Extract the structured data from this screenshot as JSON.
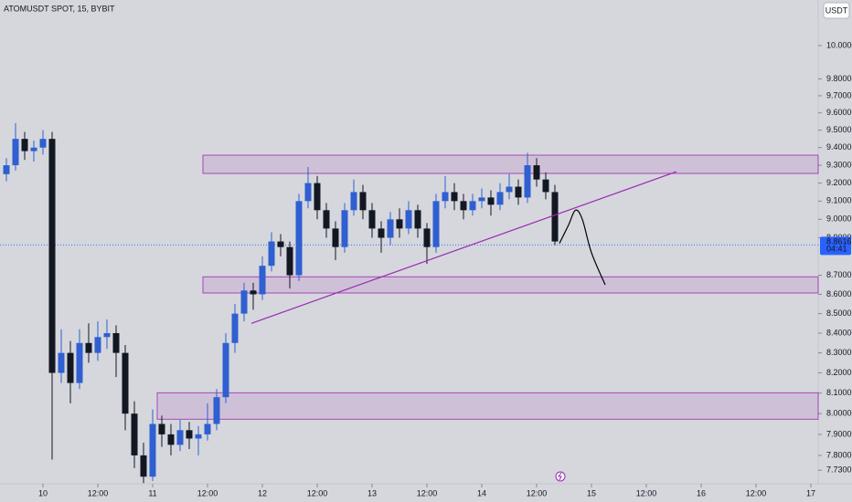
{
  "chart_data": {
    "type": "candlestick",
    "title": "ATOMUSDT SPOT, 15, BYBIT",
    "currency_button": "USDT",
    "log_scale": true,
    "up_color": "#2f5fd0",
    "down_color": "#131722",
    "x": [
      -8,
      -6,
      -4,
      -2,
      0,
      2,
      4,
      6,
      8,
      10,
      12,
      14,
      16,
      18,
      20,
      22,
      24,
      26,
      28,
      30,
      32,
      34,
      36,
      38,
      40,
      42,
      44,
      46,
      48,
      50,
      52,
      54,
      56,
      58,
      60,
      62,
      64,
      66,
      68,
      70,
      72,
      74,
      76,
      78,
      80,
      82,
      84,
      86,
      88,
      90,
      92,
      94,
      96,
      98,
      100,
      102,
      104,
      106,
      108,
      110,
      112
    ],
    "ohlc": [
      [
        9.25,
        9.34,
        9.21,
        9.3
      ],
      [
        9.3,
        9.54,
        9.27,
        9.45
      ],
      [
        9.45,
        9.49,
        9.33,
        9.38
      ],
      [
        9.38,
        9.44,
        9.32,
        9.4
      ],
      [
        9.4,
        9.5,
        9.36,
        9.45
      ],
      [
        9.45,
        9.49,
        7.78,
        8.2
      ],
      [
        8.2,
        8.42,
        8.15,
        8.3
      ],
      [
        8.3,
        8.36,
        8.05,
        8.15
      ],
      [
        8.15,
        8.42,
        8.12,
        8.35
      ],
      [
        8.35,
        8.45,
        8.25,
        8.3
      ],
      [
        8.3,
        8.46,
        8.26,
        8.38
      ],
      [
        8.38,
        8.47,
        8.32,
        8.4
      ],
      [
        8.4,
        8.44,
        8.18,
        8.3
      ],
      [
        8.3,
        8.34,
        7.92,
        8.0
      ],
      [
        8.0,
        8.06,
        7.74,
        7.8
      ],
      [
        7.8,
        7.86,
        7.67,
        7.7
      ],
      [
        7.7,
        8.02,
        7.68,
        7.95
      ],
      [
        7.95,
        7.99,
        7.84,
        7.9
      ],
      [
        7.9,
        7.95,
        7.8,
        7.85
      ],
      [
        7.85,
        7.97,
        7.82,
        7.92
      ],
      [
        7.92,
        7.96,
        7.83,
        7.88
      ],
      [
        7.88,
        7.94,
        7.8,
        7.9
      ],
      [
        7.9,
        8.05,
        7.87,
        7.95
      ],
      [
        7.95,
        8.12,
        7.92,
        8.08
      ],
      [
        8.08,
        8.4,
        8.05,
        8.35
      ],
      [
        8.35,
        8.55,
        8.3,
        8.5
      ],
      [
        8.5,
        8.66,
        8.46,
        8.62
      ],
      [
        8.62,
        8.66,
        8.52,
        8.6
      ],
      [
        8.6,
        8.8,
        8.57,
        8.75
      ],
      [
        8.75,
        8.93,
        8.72,
        8.88
      ],
      [
        8.88,
        8.92,
        8.8,
        8.85
      ],
      [
        8.85,
        8.88,
        8.63,
        8.7
      ],
      [
        8.7,
        9.14,
        8.67,
        9.1
      ],
      [
        9.1,
        9.29,
        9.06,
        9.2
      ],
      [
        9.2,
        9.24,
        9.0,
        9.05
      ],
      [
        9.05,
        9.09,
        8.9,
        8.95
      ],
      [
        8.95,
        8.99,
        8.78,
        8.85
      ],
      [
        8.85,
        9.09,
        8.82,
        9.05
      ],
      [
        9.05,
        9.22,
        9.02,
        9.15
      ],
      [
        9.15,
        9.19,
        9.0,
        9.05
      ],
      [
        9.05,
        9.09,
        8.9,
        8.95
      ],
      [
        8.95,
        8.99,
        8.82,
        8.9
      ],
      [
        8.9,
        9.04,
        8.86,
        9.0
      ],
      [
        9.0,
        9.06,
        8.9,
        8.95
      ],
      [
        8.95,
        9.1,
        8.92,
        9.05
      ],
      [
        9.05,
        9.08,
        8.9,
        8.95
      ],
      [
        8.95,
        8.98,
        8.76,
        8.85
      ],
      [
        8.85,
        9.14,
        8.82,
        9.1
      ],
      [
        9.1,
        9.24,
        9.06,
        9.15
      ],
      [
        9.15,
        9.2,
        9.05,
        9.1
      ],
      [
        9.1,
        9.14,
        9.0,
        9.05
      ],
      [
        9.05,
        9.14,
        9.02,
        9.1
      ],
      [
        9.1,
        9.17,
        9.06,
        9.12
      ],
      [
        9.12,
        9.16,
        9.02,
        9.08
      ],
      [
        9.08,
        9.2,
        9.05,
        9.15
      ],
      [
        9.15,
        9.25,
        9.11,
        9.18
      ],
      [
        9.18,
        9.22,
        9.08,
        9.12
      ],
      [
        9.12,
        9.37,
        9.09,
        9.3
      ],
      [
        9.3,
        9.34,
        9.18,
        9.22
      ],
      [
        9.22,
        9.26,
        9.11,
        9.15
      ],
      [
        9.15,
        9.19,
        8.86,
        8.88
      ]
    ],
    "xlim": [
      -9.4,
      169.6
    ],
    "xticks": [
      {
        "value": 0,
        "label": "10"
      },
      {
        "value": 12,
        "label": "12:00"
      },
      {
        "value": 24,
        "label": "11"
      },
      {
        "value": 36,
        "label": "12:00"
      },
      {
        "value": 48,
        "label": "12"
      },
      {
        "value": 60,
        "label": "12:00"
      },
      {
        "value": 72,
        "label": "13"
      },
      {
        "value": 84,
        "label": "12:00"
      },
      {
        "value": 96,
        "label": "14"
      },
      {
        "value": 108,
        "label": "12:00"
      },
      {
        "value": 120,
        "label": "15"
      },
      {
        "value": 132,
        "label": "12:00"
      },
      {
        "value": 144,
        "label": "16"
      },
      {
        "value": 156,
        "label": "12:00"
      },
      {
        "value": 168,
        "label": "17"
      }
    ],
    "ylim": [
      7.667,
      10.28
    ],
    "yticks": [
      {
        "value": 10,
        "label": "10.0000"
      },
      {
        "value": 9.8,
        "label": "9.8000"
      },
      {
        "value": 9.7,
        "label": "9.7000"
      },
      {
        "value": 9.6,
        "label": "9.6000"
      },
      {
        "value": 9.5,
        "label": "9.5000"
      },
      {
        "value": 9.4,
        "label": "9.4000"
      },
      {
        "value": 9.3,
        "label": "9.3000"
      },
      {
        "value": 9.2,
        "label": "9.2000"
      },
      {
        "value": 9.1,
        "label": "9.1000"
      },
      {
        "value": 9,
        "label": "9.0000"
      },
      {
        "value": 8.9,
        "label": "8.9000"
      },
      {
        "value": 8.7,
        "label": "8.7000"
      },
      {
        "value": 8.6,
        "label": "8.6000"
      },
      {
        "value": 8.5,
        "label": "8.5000"
      },
      {
        "value": 8.4,
        "label": "8.4000"
      },
      {
        "value": 8.3,
        "label": "8.3000"
      },
      {
        "value": 8.2,
        "label": "8.2000"
      },
      {
        "value": 8.1,
        "label": "8.1000"
      },
      {
        "value": 8,
        "label": "8.0000"
      },
      {
        "value": 7.9,
        "label": "7.9000"
      },
      {
        "value": 7.8,
        "label": "7.8000"
      },
      {
        "value": 7.73,
        "label": "7.7300"
      }
    ],
    "zones": [
      {
        "x0": 35,
        "low": 9.254,
        "high": 9.357,
        "color": "#9c27b0"
      },
      {
        "x0": 35,
        "low": 8.607,
        "high": 8.692,
        "color": "#9c27b0"
      },
      {
        "x0": 25,
        "low": 7.973,
        "high": 8.102,
        "color": "#9c27b0"
      }
    ],
    "trendline": {
      "x": [
        45.6,
        138.6
      ],
      "y": [
        8.45,
        9.264
      ],
      "color": "#9c27b0"
    },
    "projection": {
      "x": [
        113,
        115,
        116.5,
        118,
        120,
        123
      ],
      "y": [
        8.87,
        8.97,
        9.05,
        9.0,
        8.82,
        8.65
      ],
      "color": "#000000"
    },
    "last_price": {
      "value": 8.8616,
      "countdown": "04:41",
      "color": "#2962ff"
    }
  }
}
